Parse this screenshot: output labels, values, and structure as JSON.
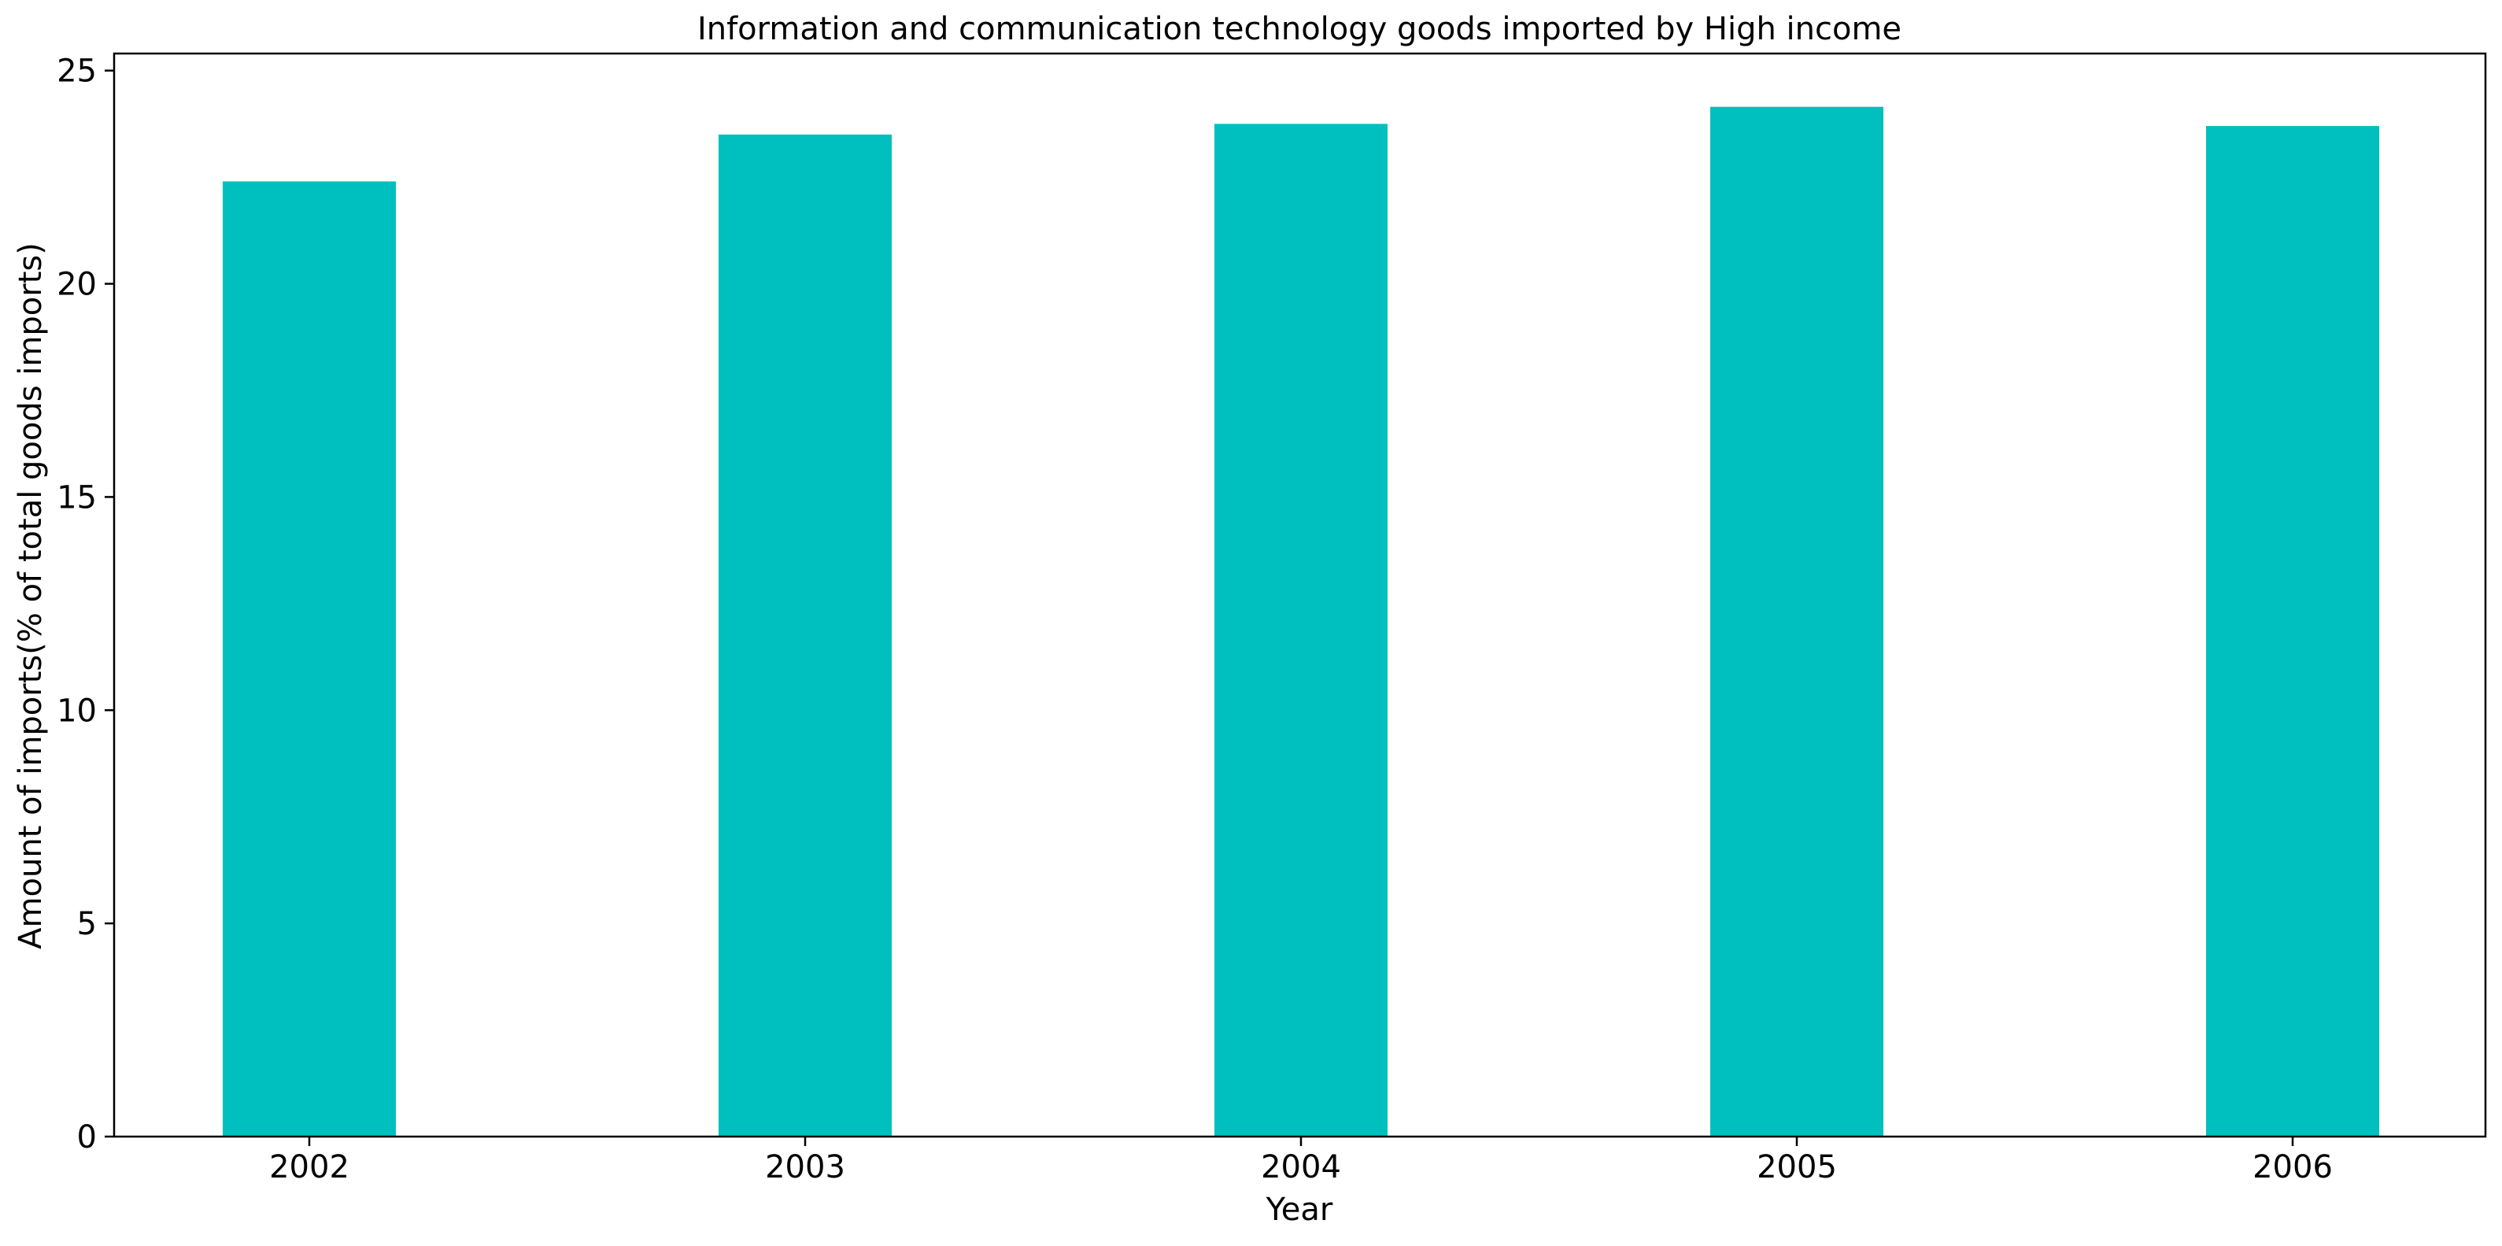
{
  "chart_data": {
    "type": "bar",
    "title": "Information and communication technology goods imported by High income",
    "xlabel": "Year",
    "ylabel": "Amount of imports(% of total goods imports)",
    "categories": [
      "2002",
      "2003",
      "2004",
      "2005",
      "2006"
    ],
    "values": [
      22.4,
      23.5,
      23.75,
      24.15,
      23.7
    ],
    "ylim": [
      0,
      25.4
    ],
    "yticks": [
      0,
      5,
      10,
      15,
      20,
      25
    ],
    "grid": false,
    "legend": "none",
    "bar_color": "#00BFBF"
  }
}
